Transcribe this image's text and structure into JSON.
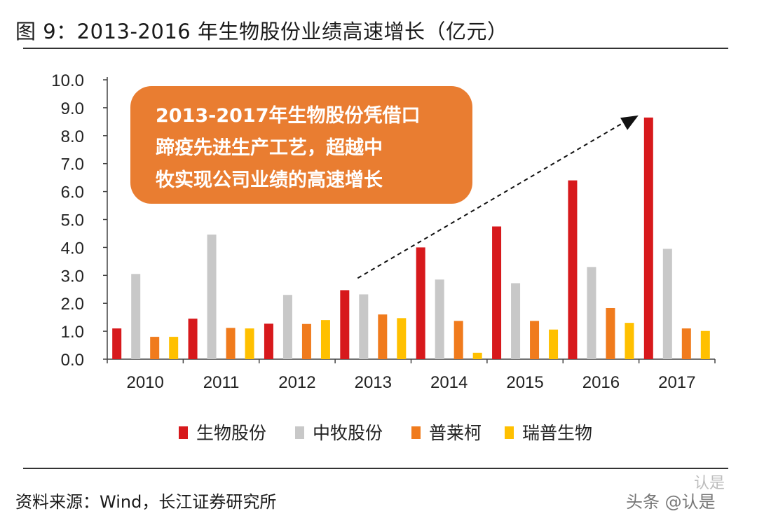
{
  "header": {
    "title": "图  9：2013-2016 年生物股份业绩高速增长（亿元）"
  },
  "footer": {
    "source": "资料来源：Wind，长江证券研究所"
  },
  "watermark": {
    "text": "头条 @认是",
    "logo_text": "认是"
  },
  "chart_data": {
    "type": "bar",
    "categories": [
      "2010",
      "2011",
      "2012",
      "2013",
      "2014",
      "2015",
      "2016",
      "2017"
    ],
    "series": [
      {
        "name": "生物股份",
        "color": "#d7191c",
        "values": [
          1.1,
          1.45,
          1.27,
          2.47,
          4.0,
          4.75,
          6.4,
          8.65
        ]
      },
      {
        "name": "中牧股份",
        "color": "#c8c8c8",
        "values": [
          3.05,
          4.46,
          2.3,
          2.32,
          2.85,
          2.72,
          3.3,
          3.95
        ]
      },
      {
        "name": "普莱柯",
        "color": "#f07b1d",
        "values": [
          0.8,
          1.12,
          1.26,
          1.6,
          1.37,
          1.37,
          1.83,
          1.1
        ]
      },
      {
        "name": "瑞普生物",
        "color": "#ffc000",
        "values": [
          0.8,
          1.1,
          1.4,
          1.47,
          0.23,
          1.06,
          1.3,
          1.01
        ]
      }
    ],
    "ylim": [
      0,
      10
    ],
    "yticks": [
      "0.0",
      "1.0",
      "2.0",
      "3.0",
      "4.0",
      "5.0",
      "6.0",
      "7.0",
      "8.0",
      "9.0",
      "10.0"
    ],
    "legend_position": "bottom",
    "annotation": {
      "lines": [
        "2013-2017年生物股份凭借口",
        "蹄疫先进生产工艺，超越中",
        "牧实现公司业绩的高速增长"
      ],
      "box_color": "#e97d31",
      "text_color": "#ffffff"
    },
    "trend_arrow": {
      "from": {
        "x": "2013",
        "y": 2.9
      },
      "to": {
        "x": "2017",
        "y": 8.7
      }
    }
  }
}
